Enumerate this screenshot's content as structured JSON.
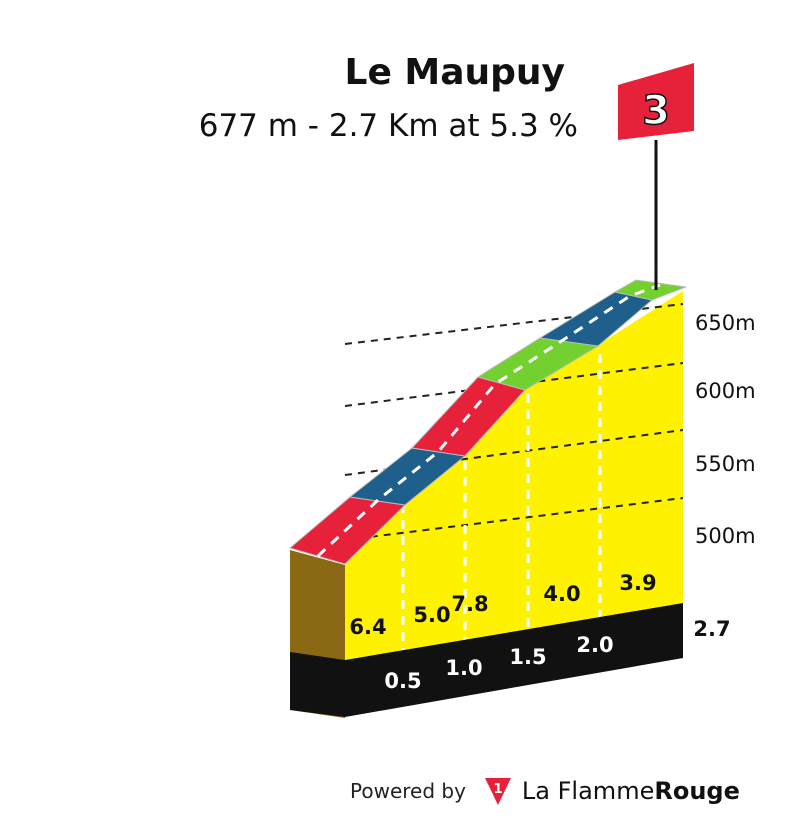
{
  "chart_data": {
    "type": "area",
    "title": "Le Maupuy",
    "subtitle": "677 m - 2.7 Km at 5.3 %",
    "summit_altitude_m": 677,
    "length_km": 2.7,
    "avg_gradient_pct": 5.3,
    "category": "3",
    "distance_km": [
      0,
      0.5,
      1.0,
      1.5,
      2.0,
      2.7
    ],
    "distance_labels": [
      "0.5",
      "1.0",
      "1.5",
      "2.0",
      "2.7"
    ],
    "segments": [
      {
        "km_start": 0.0,
        "km_end": 0.5,
        "gradient": "6.4",
        "color": "#e8213b"
      },
      {
        "km_start": 0.5,
        "km_end": 1.0,
        "gradient": "5.0",
        "color": "#1f5f8b"
      },
      {
        "km_start": 1.0,
        "km_end": 1.5,
        "gradient": "7.8",
        "color": "#e8213b"
      },
      {
        "km_start": 1.5,
        "km_end": 2.0,
        "gradient": "4.0",
        "color": "#72d12e"
      },
      {
        "km_start": 2.0,
        "km_end": 2.7,
        "gradient": "3.9",
        "color": "#1f5f8b"
      },
      {
        "km_start": 2.7,
        "km_end": 2.9,
        "gradient": "",
        "color": "#72d12e"
      }
    ],
    "altitude_ticks": [
      "650m",
      "600m",
      "550m",
      "500m"
    ],
    "colors": {
      "fill": "#fff200",
      "base": "#111111",
      "side": "#8b6914",
      "flag": "#e8213b"
    }
  },
  "footer": {
    "powered_by": "Powered by",
    "brand_part1": "La Flamme",
    "brand_part2": "Rouge",
    "brand_icon_glyph": "1"
  }
}
